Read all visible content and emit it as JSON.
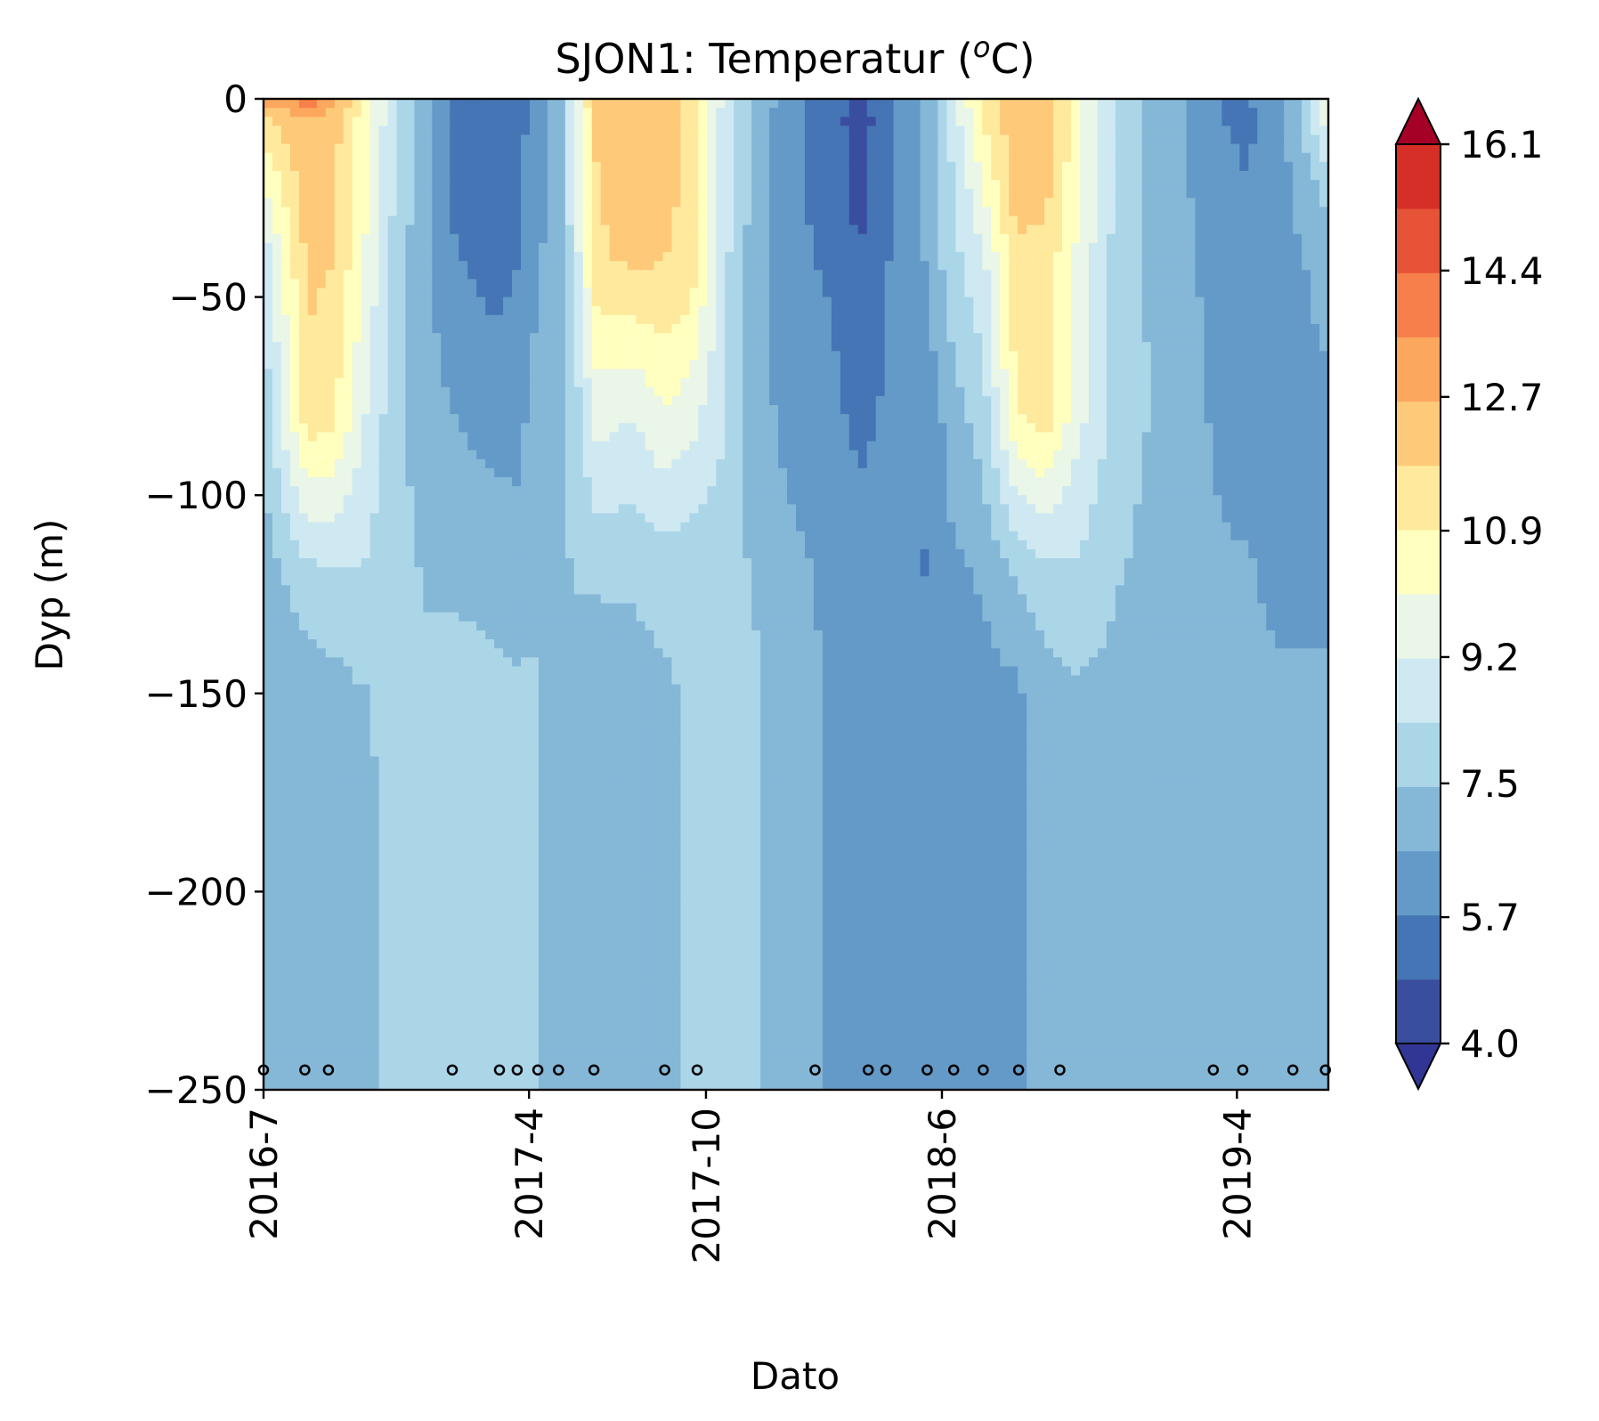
{
  "chart_data": {
    "type": "heatmap",
    "title_main": "SJON1: Temperatur (",
    "title_sup": "o",
    "title_end": "C)",
    "xlabel": "Dato",
    "ylabel": "Dyp (m)",
    "x_ticks": [
      "2016-7",
      "2017-4",
      "2017-10",
      "2018-6",
      "2019-4"
    ],
    "x_tick_months": [
      0,
      9,
      15,
      23,
      33
    ],
    "y_ticks": [
      0,
      -50,
      -100,
      -150,
      -200,
      -250
    ],
    "y_tick_labels": [
      "0",
      "−50",
      "−100",
      "−150",
      "−200",
      "−250"
    ],
    "ylim": [
      -250,
      0
    ],
    "xlim_months": [
      0,
      36.1
    ],
    "colorbar": {
      "min": 4.0,
      "max": 16.1,
      "levels": 19,
      "ticks": [
        4.0,
        5.7,
        7.5,
        9.2,
        10.9,
        12.7,
        14.4,
        16.1
      ],
      "tick_labels": [
        "4.0",
        "5.7",
        "7.5",
        "9.2",
        "10.9",
        "12.7",
        "14.4",
        "16.1"
      ],
      "extend": "both",
      "colormap": "RdYlBu_r",
      "colors": [
        "#313695",
        "#3a4ea0",
        "#4575b4",
        "#649ac7",
        "#85b7d7",
        "#abd6e8",
        "#cfe9f2",
        "#e9f6e8",
        "#ffffbf",
        "#fee99d",
        "#fec978",
        "#fca75e",
        "#f67f4b",
        "#e65336",
        "#d62f27",
        "#a50026"
      ]
    },
    "sample_dates_months": [
      0,
      1.4,
      2.2,
      6.4,
      8.0,
      8.6,
      9.3,
      10.0,
      11.2,
      13.6,
      14.7,
      18.7,
      20.5,
      21.1,
      22.5,
      23.4,
      24.4,
      25.6,
      27.0,
      32.2,
      33.2,
      34.9,
      36.0
    ],
    "profiles": [
      {
        "t": 0,
        "d": [
          0,
          -5,
          -20,
          -40,
          -80,
          -120,
          -150,
          -200,
          -250
        ],
        "v": [
          13.5,
          11.5,
          10.2,
          8.6,
          7.7,
          7.0,
          6.9,
          6.8,
          6.8
        ]
      },
      {
        "t": 1.5,
        "d": [
          0,
          -5,
          -20,
          -40,
          -80,
          -120,
          -150,
          -200,
          -250
        ],
        "v": [
          14.0,
          12.6,
          12.4,
          12.0,
          11.5,
          8.0,
          7.0,
          6.8,
          6.8
        ]
      },
      {
        "t": 2.3,
        "d": [
          0,
          -5,
          -20,
          -40,
          -80,
          -120,
          -150,
          -200,
          -250
        ],
        "v": [
          13.5,
          12.2,
          12.2,
          11.8,
          11.2,
          8.2,
          7.1,
          6.8,
          6.8
        ]
      },
      {
        "t": 3.3,
        "d": [
          0,
          -5,
          -20,
          -40,
          -80,
          -120,
          -150,
          -200,
          -250
        ],
        "v": [
          10.8,
          10.6,
          10.5,
          10.3,
          9.4,
          8.3,
          7.4,
          7.3,
          7.3
        ]
      },
      {
        "t": 4.5,
        "d": [
          0,
          -5,
          -20,
          -40,
          -80,
          -120,
          -150,
          -200,
          -250
        ],
        "v": [
          8.5,
          8.4,
          8.2,
          7.9,
          7.7,
          7.7,
          7.6,
          7.6,
          7.6
        ]
      },
      {
        "t": 5.5,
        "d": [
          0,
          -5,
          -20,
          -40,
          -80,
          -120,
          -150,
          -200,
          -250
        ],
        "v": [
          7.2,
          6.9,
          6.8,
          6.8,
          7.0,
          7.4,
          7.6,
          7.6,
          7.6
        ]
      },
      {
        "t": 6.4,
        "d": [
          0,
          -5,
          -20,
          -40,
          -80,
          -120,
          -150,
          -200,
          -250
        ],
        "v": [
          5.6,
          5.5,
          5.6,
          5.8,
          6.6,
          7.4,
          7.6,
          7.6,
          7.6
        ]
      },
      {
        "t": 7.8,
        "d": [
          0,
          -5,
          -20,
          -40,
          -80,
          -120,
          -150,
          -200,
          -250
        ],
        "v": [
          4.9,
          5.0,
          5.3,
          5.4,
          6.2,
          7.3,
          7.6,
          7.6,
          7.6
        ]
      },
      {
        "t": 8.6,
        "d": [
          0,
          -5,
          -20,
          -40,
          -80,
          -120,
          -150,
          -200,
          -250
        ],
        "v": [
          5.4,
          5.5,
          5.6,
          5.7,
          6.3,
          7.0,
          7.6,
          7.6,
          7.6
        ]
      },
      {
        "t": 9.3,
        "d": [
          0,
          -5,
          -20,
          -40,
          -80,
          -120,
          -150,
          -200,
          -250
        ],
        "v": [
          5.9,
          6.0,
          6.2,
          6.5,
          7.0,
          7.2,
          7.6,
          7.6,
          7.6
        ]
      },
      {
        "t": 10.0,
        "d": [
          0,
          -5,
          -20,
          -40,
          -80,
          -120,
          -150,
          -200,
          -250
        ],
        "v": [
          7.0,
          7.0,
          7.0,
          7.1,
          7.2,
          7.2,
          6.9,
          6.8,
          6.8
        ]
      },
      {
        "t": 10.7,
        "d": [
          0,
          -5,
          -20,
          -40,
          -80,
          -120,
          -150,
          -200,
          -250
        ],
        "v": [
          10.0,
          9.9,
          9.7,
          9.2,
          8.2,
          7.6,
          6.9,
          6.8,
          6.8
        ]
      },
      {
        "t": 11.3,
        "d": [
          0,
          -5,
          -20,
          -40,
          -80,
          -120,
          -150,
          -200,
          -250
        ],
        "v": [
          12.0,
          12.0,
          11.8,
          11.6,
          9.5,
          7.6,
          6.9,
          6.8,
          6.8
        ]
      },
      {
        "t": 12.6,
        "d": [
          0,
          -5,
          -20,
          -40,
          -80,
          -120,
          -150,
          -200,
          -250
        ],
        "v": [
          12.2,
          12.2,
          12.4,
          12.0,
          9.2,
          7.6,
          7.1,
          6.8,
          6.8
        ]
      },
      {
        "t": 13.6,
        "d": [
          0,
          -5,
          -20,
          -40,
          -80,
          -120,
          -150,
          -200,
          -250
        ],
        "v": [
          12.0,
          12.0,
          12.0,
          11.8,
          10.0,
          7.8,
          7.3,
          7.3,
          7.3
        ]
      },
      {
        "t": 14.5,
        "d": [
          0,
          -5,
          -20,
          -40,
          -80,
          -120,
          -150,
          -200,
          -250
        ],
        "v": [
          11.5,
          11.5,
          11.6,
          11.5,
          9.5,
          7.7,
          7.6,
          7.6,
          7.6
        ]
      },
      {
        "t": 15.6,
        "d": [
          0,
          -5,
          -20,
          -40,
          -80,
          -120,
          -150,
          -200,
          -250
        ],
        "v": [
          9.0,
          8.9,
          8.8,
          8.6,
          8.4,
          7.8,
          7.6,
          7.6,
          7.6
        ]
      },
      {
        "t": 16.6,
        "d": [
          0,
          -5,
          -20,
          -40,
          -80,
          -120,
          -150,
          -200,
          -250
        ],
        "v": [
          7.4,
          7.3,
          7.2,
          7.1,
          7.0,
          7.4,
          7.6,
          7.6,
          7.6
        ]
      },
      {
        "t": 18.0,
        "d": [
          0,
          -5,
          -20,
          -40,
          -80,
          -120,
          -150,
          -200,
          -250
        ],
        "v": [
          5.9,
          5.8,
          5.8,
          5.9,
          6.2,
          6.8,
          7.0,
          7.0,
          7.0
        ]
      },
      {
        "t": 19.2,
        "d": [
          0,
          -5,
          -20,
          -40,
          -80,
          -120,
          -150,
          -200,
          -250
        ],
        "v": [
          5.5,
          5.4,
          5.5,
          5.6,
          6.0,
          6.4,
          6.5,
          6.5,
          6.5
        ]
      },
      {
        "t": 20.2,
        "d": [
          0,
          -5,
          -20,
          -40,
          -80,
          -120,
          -150,
          -200,
          -250
        ],
        "v": [
          4.5,
          4.3,
          4.4,
          4.9,
          5.5,
          6.1,
          6.1,
          6.1,
          6.1
        ]
      },
      {
        "t": 21.3,
        "d": [
          0,
          -5,
          -20,
          -40,
          -80,
          -120,
          -150,
          -200,
          -250
        ],
        "v": [
          5.8,
          5.8,
          5.8,
          5.8,
          5.9,
          6.1,
          6.1,
          6.1,
          6.1
        ]
      },
      {
        "t": 22.4,
        "d": [
          0,
          -5,
          -20,
          -40,
          -80,
          -120,
          -150,
          -200,
          -250
        ],
        "v": [
          6.6,
          6.7,
          6.7,
          6.6,
          5.8,
          5.7,
          6.1,
          6.1,
          6.1
        ]
      },
      {
        "t": 23.3,
        "d": [
          0,
          -5,
          -20,
          -40,
          -80,
          -120,
          -150,
          -200,
          -250
        ],
        "v": [
          8.8,
          8.5,
          8.2,
          8.0,
          7.0,
          6.4,
          6.2,
          6.1,
          6.1
        ]
      },
      {
        "t": 24.4,
        "d": [
          0,
          -5,
          -20,
          -40,
          -80,
          -120,
          -150,
          -200,
          -250
        ],
        "v": [
          11.2,
          11.0,
          10.2,
          9.0,
          7.9,
          6.7,
          6.3,
          6.2,
          6.2
        ]
      },
      {
        "t": 25.5,
        "d": [
          0,
          -5,
          -20,
          -40,
          -80,
          -120,
          -150,
          -200,
          -250
        ],
        "v": [
          12.6,
          12.4,
          12.2,
          11.6,
          10.8,
          7.5,
          6.4,
          6.4,
          6.4
        ]
      },
      {
        "t": 26.5,
        "d": [
          0,
          -5,
          -20,
          -40,
          -80,
          -120,
          -150,
          -200,
          -250
        ],
        "v": [
          12.2,
          12.3,
          12.2,
          11.5,
          11.4,
          8.0,
          7.1,
          7.1,
          7.1
        ]
      },
      {
        "t": 27.5,
        "d": [
          0,
          -5,
          -20,
          -40,
          -80,
          -120,
          -150,
          -200,
          -250
        ],
        "v": [
          10.5,
          10.5,
          10.4,
          10.0,
          9.6,
          8.2,
          7.3,
          7.3,
          7.3
        ]
      },
      {
        "t": 29.0,
        "d": [
          0,
          -5,
          -20,
          -40,
          -80,
          -120,
          -150,
          -200,
          -250
        ],
        "v": [
          8.0,
          8.0,
          8.0,
          7.9,
          7.9,
          7.5,
          7.2,
          7.2,
          7.2
        ]
      },
      {
        "t": 31.0,
        "d": [
          0,
          -5,
          -20,
          -40,
          -80,
          -120,
          -150,
          -200,
          -250
        ],
        "v": [
          6.8,
          6.8,
          6.8,
          6.9,
          7.0,
          7.0,
          7.0,
          7.0,
          7.0
        ]
      },
      {
        "t": 32.5,
        "d": [
          0,
          -5,
          -20,
          -40,
          -80,
          -120,
          -150,
          -200,
          -250
        ],
        "v": [
          5.6,
          5.7,
          6.0,
          6.2,
          6.4,
          6.7,
          6.9,
          6.9,
          6.9
        ]
      },
      {
        "t": 33.4,
        "d": [
          0,
          -5,
          -20,
          -40,
          -80,
          -120,
          -150,
          -200,
          -250
        ],
        "v": [
          5.7,
          5.6,
          5.7,
          5.8,
          6.1,
          6.7,
          6.9,
          6.9,
          6.9
        ]
      },
      {
        "t": 34.5,
        "d": [
          0,
          -5,
          -20,
          -40,
          -80,
          -120,
          -150,
          -200,
          -250
        ],
        "v": [
          6.2,
          6.3,
          6.3,
          6.3,
          6.1,
          6.2,
          6.8,
          6.9,
          6.9
        ]
      },
      {
        "t": 35.3,
        "d": [
          0,
          -5,
          -20,
          -40,
          -80,
          -120,
          -150,
          -200,
          -250
        ],
        "v": [
          8.0,
          7.7,
          7.1,
          6.6,
          6.3,
          6.2,
          6.8,
          6.9,
          6.9
        ]
      },
      {
        "t": 36.1,
        "d": [
          0,
          -5,
          -20,
          -40,
          -80,
          -120,
          -150,
          -200,
          -250
        ],
        "v": [
          10.5,
          9.8,
          8.0,
          7.0,
          6.4,
          6.3,
          6.8,
          6.9,
          6.9
        ]
      }
    ]
  }
}
